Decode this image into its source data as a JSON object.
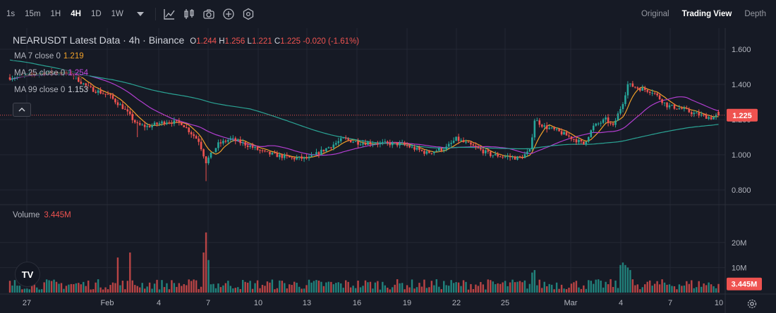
{
  "toolbar": {
    "timeframes": [
      "1s",
      "15m",
      "1H",
      "4H",
      "1D",
      "1W"
    ],
    "active_timeframe": "4H",
    "icons": [
      "chevron-down-icon",
      "indicator-icon",
      "candle-type-icon",
      "camera-icon",
      "add-icon",
      "settings-icon"
    ]
  },
  "views": {
    "original": "Original",
    "trading_view": "Trading View",
    "depth": "Depth",
    "active": "Trading View"
  },
  "legend": {
    "title": "NEARUSDT Latest Data · 4h · Binance",
    "o_label": "O",
    "o": "1.244",
    "h_label": "H",
    "h": "1.256",
    "l_label": "L",
    "l": "1.221",
    "c_label": "C",
    "c": "1.225",
    "change": "-0.020 (-1.61%)",
    "ma7_label": "MA 7 close 0",
    "ma7_value": "1.219",
    "ma25_label": "MA 25 close 0",
    "ma25_value": "1.254",
    "ma99_label": "MA 99 close 0",
    "ma99_value": "1.153"
  },
  "volume_legend": {
    "label": "Volume",
    "value": "3.445M"
  },
  "colors": {
    "background": "#161a25",
    "grid": "#232733",
    "up": "#26a69a",
    "down": "#ef5350",
    "ma7": "#f0a12a",
    "ma25": "#b23ed0",
    "ma99": "#2aa394",
    "price_label_bg": "#ef5350"
  },
  "logo_text": "TV",
  "chart_data": {
    "type": "candlestick",
    "symbol": "NEARUSDT",
    "interval": "4h",
    "exchange": "Binance",
    "price_axis": {
      "ticks": [
        "0.800",
        "1.000",
        "1.200",
        "1.400",
        "1.600"
      ],
      "tick_values": [
        0.8,
        1.0,
        1.2,
        1.4,
        1.6
      ],
      "ylim": [
        0.72,
        1.72
      ]
    },
    "volume_axis": {
      "ticks": [
        "10M",
        "20M"
      ],
      "tick_values": [
        10,
        20
      ],
      "max": 32
    },
    "x_labels": [
      "27",
      "Feb",
      "4",
      "7",
      "10",
      "13",
      "16",
      "19",
      "22",
      "25",
      "Mar",
      "4",
      "7",
      "10"
    ],
    "current_price": "1.225",
    "current_volume": "3.445M",
    "close_anchors": [
      {
        "x": 0,
        "close": 1.44
      },
      {
        "x": 15,
        "close": 1.47
      },
      {
        "x": 25,
        "close": 1.46
      },
      {
        "x": 32,
        "close": 1.38
      },
      {
        "x": 40,
        "close": 1.34
      },
      {
        "x": 46,
        "close": 1.27
      },
      {
        "x": 52,
        "close": 1.17
      },
      {
        "x": 56,
        "close": 1.16
      },
      {
        "x": 64,
        "close": 1.19
      },
      {
        "x": 70,
        "close": 1.18
      },
      {
        "x": 77,
        "close": 1.08
      },
      {
        "x": 80,
        "close": 0.96
      },
      {
        "x": 85,
        "close": 1.06
      },
      {
        "x": 90,
        "close": 1.09
      },
      {
        "x": 96,
        "close": 1.06
      },
      {
        "x": 104,
        "close": 1.01
      },
      {
        "x": 115,
        "close": 0.98
      },
      {
        "x": 122,
        "close": 0.98
      },
      {
        "x": 136,
        "close": 1.09
      },
      {
        "x": 142,
        "close": 1.07
      },
      {
        "x": 160,
        "close": 1.06
      },
      {
        "x": 170,
        "close": 1.01
      },
      {
        "x": 178,
        "close": 1.04
      },
      {
        "x": 182,
        "close": 1.09
      },
      {
        "x": 190,
        "close": 1.04
      },
      {
        "x": 196,
        "close": 1.0
      },
      {
        "x": 208,
        "close": 0.98
      },
      {
        "x": 212,
        "close": 1.02
      },
      {
        "x": 214,
        "close": 1.2
      },
      {
        "x": 218,
        "close": 1.16
      },
      {
        "x": 224,
        "close": 1.13
      },
      {
        "x": 230,
        "close": 1.09
      },
      {
        "x": 234,
        "close": 1.06
      },
      {
        "x": 238,
        "close": 1.16
      },
      {
        "x": 243,
        "close": 1.2
      },
      {
        "x": 246,
        "close": 1.16
      },
      {
        "x": 250,
        "close": 1.3
      },
      {
        "x": 252,
        "close": 1.4
      },
      {
        "x": 256,
        "close": 1.38
      },
      {
        "x": 262,
        "close": 1.36
      },
      {
        "x": 268,
        "close": 1.28
      },
      {
        "x": 274,
        "close": 1.26
      },
      {
        "x": 280,
        "close": 1.23
      },
      {
        "x": 286,
        "close": 1.21
      },
      {
        "x": 289,
        "close": 1.225
      }
    ],
    "volume_spikes": [
      {
        "x": 44,
        "volume": 14
      },
      {
        "x": 49,
        "volume": 16
      },
      {
        "x": 79,
        "volume": 16
      },
      {
        "x": 80,
        "volume": 24
      },
      {
        "x": 81,
        "volume": 13
      },
      {
        "x": 213,
        "volume": 8
      },
      {
        "x": 214,
        "volume": 9
      },
      {
        "x": 249,
        "volume": 11
      },
      {
        "x": 250,
        "volume": 12
      },
      {
        "x": 251,
        "volume": 11
      },
      {
        "x": 252,
        "volume": 10
      },
      {
        "x": 253,
        "volume": 9
      }
    ],
    "ma_periods": [
      7,
      25,
      99
    ]
  }
}
